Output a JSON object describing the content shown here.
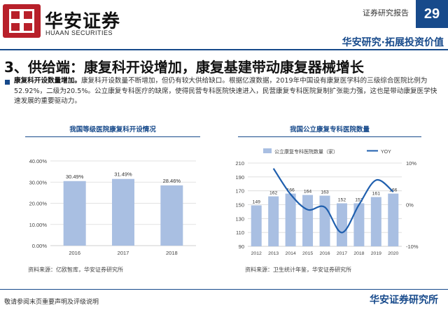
{
  "header": {
    "logo_cn": "华安证券",
    "logo_en": "HUAAN SECURITIES",
    "report_type": "证券研究报告",
    "page_number": "29",
    "slogan": "华安研究·拓展投资价值"
  },
  "section_title": "3、供给端：康复科开设增加，康复基建带动康复器械增长",
  "bullet": {
    "lead": "康复科开设数量增加。",
    "body": "康复科开设数量不断增加，但仍有较大供给缺口。根据亿渡数据，2019年中国设有康复医学科的三级综合医院比例为52.92%，二级为20.5%。公立康复专科医疗的缺席，使得民营专科医院快速进入，民营康复专科医院复制扩张能力强，这也是带动康复医学快速发展的重要驱动力。"
  },
  "left_panel": {
    "title": "我国等级医院康复科开设情况",
    "source": "资料来源：亿欧智库，华安证券研究所"
  },
  "right_panel": {
    "title": "我国公立康复专科医院数量",
    "source": "资料来源：卫生统计年鉴，华安证券研究所"
  },
  "chart_data": [
    {
      "type": "bar",
      "title": "我国等级医院康复科开设情况",
      "categories": [
        "2016",
        "2017",
        "2018"
      ],
      "values": [
        30.49,
        31.49,
        28.46
      ],
      "data_labels": [
        "30.49%",
        "31.49%",
        "28.46%"
      ],
      "yticks": [
        "0.00%",
        "10.00%",
        "20.00%",
        "30.00%",
        "40.00%"
      ],
      "ylim": [
        0,
        40
      ],
      "grid": true,
      "colors": {
        "bar": "#a9bfe2",
        "grid": "#d9d9d9",
        "axis": "#bfbfbf"
      }
    },
    {
      "type": "bar",
      "title": "我国公立康复专科医院数量",
      "categories": [
        "2012",
        "2013",
        "2014",
        "2015",
        "2016",
        "2017",
        "2018",
        "2019",
        "2020"
      ],
      "series": [
        {
          "name": "公立康复专科医院数量（家）",
          "type": "bar",
          "values": [
            149,
            162,
            166,
            164,
            163,
            152,
            152,
            161,
            166
          ]
        },
        {
          "name": "YOY",
          "type": "line",
          "axis": "right",
          "values": [
            null,
            8.7,
            2.5,
            -1.2,
            -0.6,
            -6.7,
            0.0,
            5.9,
            3.1
          ]
        }
      ],
      "yticks_left": [
        "90",
        "110",
        "130",
        "150",
        "170",
        "190",
        "210"
      ],
      "ylim_left": [
        90,
        210
      ],
      "yticks_right": [
        "10%",
        "0%",
        "-10%"
      ],
      "ylim_right": [
        -10,
        10
      ],
      "legend_position": "top",
      "grid": true,
      "colors": {
        "bar": "#a9bfe2",
        "line": "#1f5fae",
        "grid": "#d9d9d9",
        "axis": "#bfbfbf"
      }
    }
  ],
  "footer": {
    "note": "敬请参阅末页重要声明及评级说明",
    "brand": "华安证券研究所"
  }
}
